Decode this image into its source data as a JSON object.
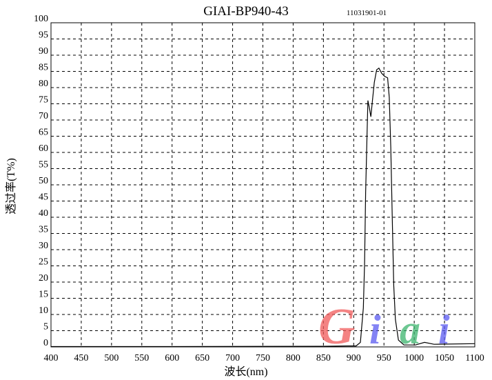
{
  "chart_data": {
    "type": "line",
    "title": "GIAI-BP940-43",
    "subtitle": "11031901-01",
    "xlabel": "波长(nm)",
    "ylabel": "透过率(T%)",
    "xlim": [
      400,
      1100
    ],
    "ylim": [
      0,
      100
    ],
    "xticks": [
      400,
      450,
      500,
      550,
      600,
      650,
      700,
      750,
      800,
      850,
      900,
      950,
      1000,
      1050,
      1100
    ],
    "yticks": [
      0,
      5,
      10,
      15,
      20,
      25,
      30,
      35,
      40,
      45,
      50,
      55,
      60,
      65,
      70,
      75,
      80,
      85,
      90,
      95,
      100
    ],
    "grid": true,
    "grid_style": "dashed",
    "series": [
      {
        "color": "#000000",
        "x": [
          400,
          600,
          850,
          890,
          904,
          911,
          916,
          918,
          919.7,
          922,
          923.5,
          925.8,
          928.4,
          931,
          934,
          937.9,
          941.7,
          946.2,
          951,
          956,
          958.7,
          961.3,
          963.6,
          966.2,
          968.9,
          973.9,
          983,
          1002,
          1017,
          1032.6,
          1100
        ],
        "y": [
          0.1,
          0.1,
          0.2,
          0.3,
          0.3,
          1.4,
          12,
          26,
          47.5,
          65,
          76,
          73.8,
          71,
          76,
          81.6,
          85.5,
          86,
          84.4,
          83.5,
          83,
          77,
          61.7,
          40.4,
          19,
          8.5,
          2.1,
          0.6,
          0.6,
          1.4,
          0.8,
          1
        ]
      }
    ]
  },
  "watermark": {
    "text": "Giai",
    "letters": [
      {
        "ch": "G",
        "color": "#f05a5a"
      },
      {
        "ch": "i",
        "color": "#5a5af0"
      },
      {
        "ch": "a",
        "color": "#3cb46e"
      },
      {
        "ch": "i",
        "color": "#5a5af0"
      }
    ]
  }
}
